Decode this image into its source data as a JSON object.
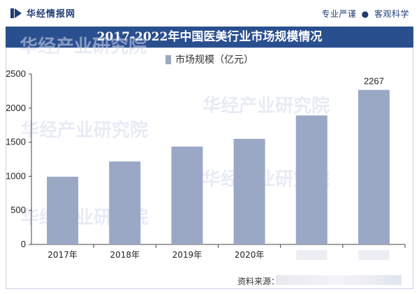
{
  "header": {
    "brand": "华经情报网",
    "slogan_left": "专业严谨",
    "slogan_sep": "●",
    "slogan_right": "客观科学"
  },
  "watermark": "华经产业研究院",
  "source_label": "资料来源：",
  "colors": {
    "bar": "#9aa8c6",
    "title_bg": "#2a4f8f",
    "axis": "#444444"
  },
  "chart_data": {
    "type": "bar",
    "title": "2017-2022年中国医美行业市场规模情况",
    "categories": [
      "2017年",
      "2018年",
      "2019年",
      "2020年",
      "",
      ""
    ],
    "series": [
      {
        "name": "市场规模（亿元）",
        "values": [
          993,
          1217,
          1436,
          1549,
          1892,
          2267
        ]
      }
    ],
    "data_labels": [
      "",
      "",
      "",
      "",
      "",
      "2267"
    ],
    "ylim": [
      0,
      2500
    ],
    "yticks": [
      0,
      500,
      1000,
      1500,
      2000,
      2500
    ],
    "legend_position": "top-center",
    "grid": false
  }
}
